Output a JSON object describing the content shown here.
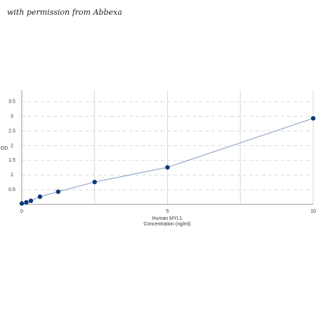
{
  "watermark": "with permission from Abbexa",
  "chart_data": {
    "type": "line",
    "ylabel": "OD",
    "xlabel": [
      "Human MYL1",
      "Concentration (ng/ml)"
    ],
    "x": [
      0,
      0.156,
      0.312,
      0.625,
      1.25,
      2.5,
      5,
      10
    ],
    "series": [
      {
        "color": "#0b3a7a",
        "line_color": "#7f9bbf",
        "values": [
          0.03,
          0.07,
          0.12,
          0.26,
          0.43,
          0.76,
          1.26,
          2.93
        ]
      }
    ],
    "xlim": [
      0,
      10
    ],
    "xticks": [
      0,
      5,
      10
    ],
    "ylim": [
      0,
      3.9
    ],
    "yticks": [
      0.5,
      1,
      1.5,
      2,
      2.5,
      3,
      3.5
    ],
    "grid": true
  }
}
